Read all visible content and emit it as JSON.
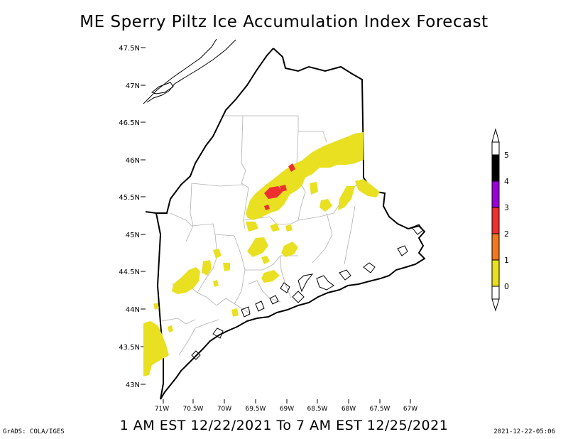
{
  "title": "ME Sperry Piltz Ice Accumulation Index Forecast",
  "subtitle": "1 AM EST 12/22/2021 To 7 AM EST 12/25/2021",
  "credit": "GrADS: COLA/IGES",
  "timestamp": "2021-12-22-05:06",
  "lat_labels": [
    "47.5N",
    "47N",
    "46.5N",
    "46N",
    "45.5N",
    "45N",
    "44.5N",
    "44N",
    "43.5N",
    "43N"
  ],
  "lon_labels": [
    "71W",
    "70.5W",
    "70W",
    "69.5W",
    "69W",
    "68.5W",
    "68W",
    "67.5W",
    "67W"
  ],
  "colorbar": {
    "labels": [
      "5",
      "4",
      "3",
      "2",
      "1",
      "0"
    ],
    "colors": [
      "#000000",
      "#9a00d8",
      "#ee3030",
      "#f07820",
      "#e8e020"
    ]
  },
  "colors": {
    "ice_0_1": "#e8e020",
    "ice_2_3": "#ee3030",
    "state_border": "#000000",
    "county_border": "#b0b0b0"
  }
}
